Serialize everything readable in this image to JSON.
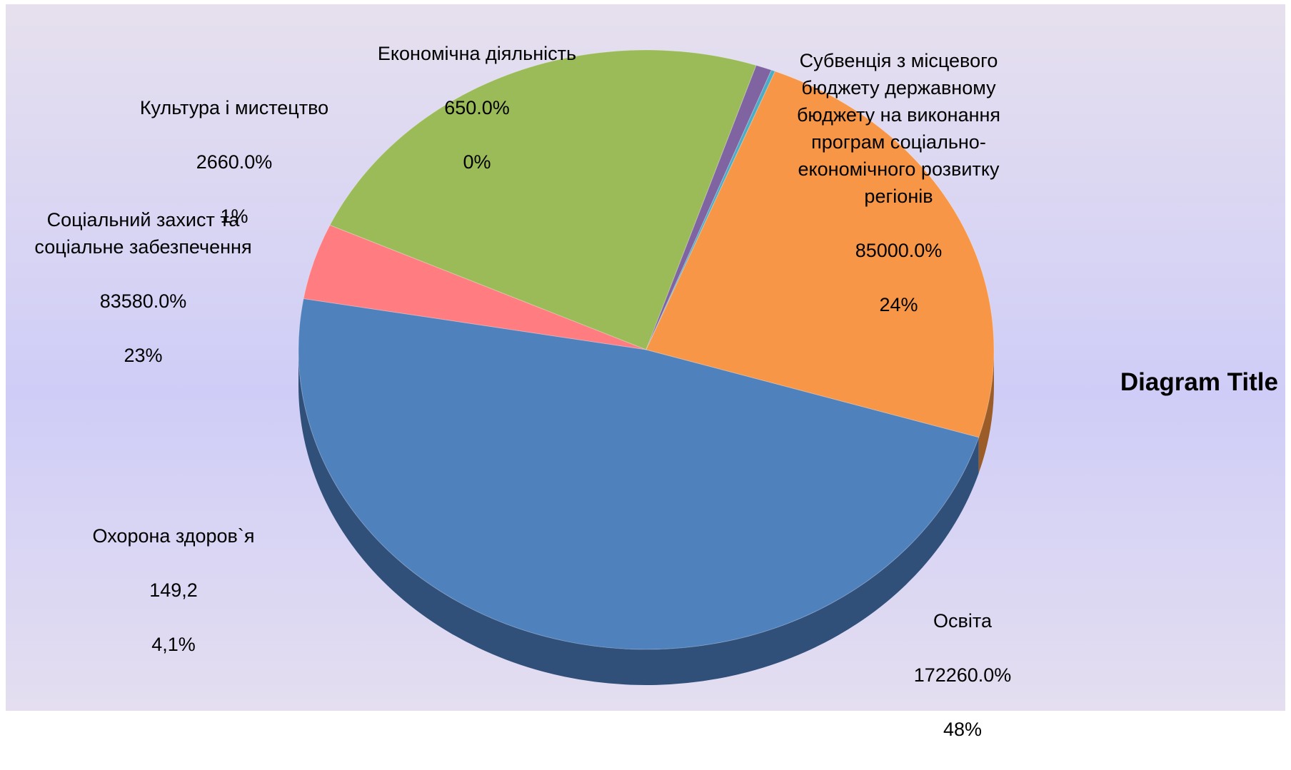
{
  "chart_data": {
    "type": "pie",
    "title": "Diagram Title",
    "slices": [
      {
        "name": "Освіта",
        "value_label": "172260.0%",
        "percent_label": "48%",
        "percent": 48,
        "color": "#4f81bd",
        "side": "#30507a"
      },
      {
        "name": "Охорона здоров`я",
        "value_label": "149,2",
        "percent_label": "4,1%",
        "percent": 4.1,
        "color": "#ff7c80",
        "side": "#a84a4e"
      },
      {
        "name": "Соціальний захист та соціальне забезпечення",
        "value_label": "83580.0%",
        "percent_label": "23%",
        "percent": 23.3,
        "color": "#9bbb59",
        "side": "#5f7434"
      },
      {
        "name": "Культура і мистецтво",
        "value_label": "2660.0%",
        "percent_label": "1%",
        "percent": 0.74,
        "color": "#8064a2",
        "side": "#4d3c61"
      },
      {
        "name": "Економічна діяльність",
        "value_label": "650.0%",
        "percent_label": "0%",
        "percent": 0.18,
        "color": "#4bacc6",
        "side": "#2d6775"
      },
      {
        "name": "Субвенція з місцевого бюджету державному бюджету на виконання програм соціально-економічного розвитку регіонів",
        "value_label": "85000.0%",
        "percent_label": "24%",
        "percent": 23.68,
        "color": "#f79646",
        "side": "#9c5c27"
      }
    ]
  }
}
